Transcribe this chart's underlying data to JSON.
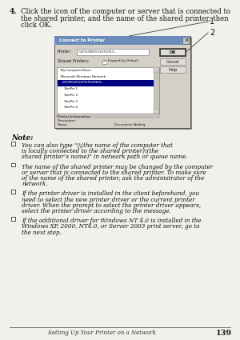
{
  "bg_color": "#f2f0ec",
  "step_number": "4.",
  "step_text_line1": "Click the icon of the computer or server that is connected to",
  "step_text_line2": "the shared printer, and the name of the shared printer, then",
  "step_text_line3": "click OK.",
  "note_label": "Note:",
  "bullet1_lines": [
    "You can also type \"\\\\(the name of the computer that",
    "is locally connected to the shared printer)\\(the",
    "shared printer’s name)\" in network path or queue name."
  ],
  "bullet2_lines": [
    "The name of the shared printer may be changed by the computer",
    "or server that is connected to the shared printer. To make sure",
    "of the name of the shared printer, ask the administrator of the",
    "network."
  ],
  "bullet3_lines": [
    "If the printer driver is installed in the client beforehand, you",
    "need to select the new printer driver or the current printer",
    "driver. When the prompt to select the printer driver appears,",
    "select the printer driver according to the message."
  ],
  "bullet4_lines": [
    "If the additional driver for Windows NT 4.0 is installed in the",
    "Windows XP, 2000, NT4.0, or Server 2003 print server, go to",
    "the next step."
  ],
  "footer_text": "Setting Up Your Printer on a Network",
  "footer_page": "139",
  "dlg_title": "Connect to Printer",
  "dlg_printer_label": "Printer:",
  "dlg_printer_value": "\\\\EPSONRX5XXXX\\EPLS...",
  "dlg_shared_label": "Shared Printers:",
  "dlg_expand_label": "Expand by Default",
  "dlg_ok": "OK",
  "dlg_cancel": "Cancel",
  "dlg_help": "Help",
  "dlg_tree1": "MyComputerShare",
  "dlg_tree2": "Microsoft Windows Network",
  "dlg_tree3": "WORKGROUP\\EPSONRX...",
  "dlg_tree4": "NetPrt 1",
  "dlg_tree5": "NetPrt 2",
  "dlg_tree6": "NetPrt 3",
  "dlg_tree7": "NetPrt 4",
  "dlg_info_label": "Printer Information",
  "dlg_desc_label": "Description:",
  "dlg_status_label": "Status:",
  "dlg_status_value": "Documents Waiting",
  "callout1": "1",
  "callout2": "2",
  "color_title_bar": "#aaaaaa",
  "color_dialog_bg": "#d4d0c8",
  "color_white": "#ffffff",
  "color_dark": "#111111",
  "color_selected_row": "#000080",
  "color_text_field": "#ffffff",
  "color_border": "#808080"
}
